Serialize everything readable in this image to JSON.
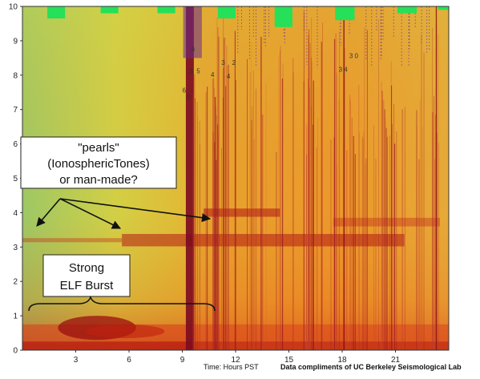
{
  "chart_data": {
    "type": "heatmap",
    "title": "",
    "xlabel": "Time: Hours PST",
    "ylabel": "",
    "xlim": [
      0,
      24
    ],
    "ylim": [
      0,
      10
    ],
    "x_ticks": [
      3,
      6,
      9,
      12,
      15,
      18,
      21
    ],
    "y_ticks": [
      0,
      1,
      2,
      3,
      4,
      5,
      6,
      7,
      8,
      9,
      10
    ],
    "grid": false,
    "colormap": [
      "#7ecf6a",
      "#d8d838",
      "#f0a020",
      "#e45a10",
      "#b01010"
    ],
    "features": {
      "pearls_band_frequency": 3.2,
      "upper_band_frequency": 4.0,
      "elf_burst_frequency_max": 1.0,
      "strong_vertical_line_time": 9.2
    },
    "annotations": [
      {
        "name": "pearls",
        "lines": [
          "\"pearls\"",
          "(IonosphericTones)",
          "or man-made?"
        ]
      },
      {
        "name": "elf-burst",
        "lines": [
          "Strong",
          "ELF Burst"
        ]
      }
    ],
    "credit": "Data compliments of UC Berkeley Seismological Lab",
    "small_annotations": [
      "3",
      "5",
      "3",
      "2",
      "4",
      "8",
      "4",
      "6",
      "3",
      "4",
      "3",
      "0",
      "6"
    ]
  },
  "colors": {
    "background_green": "#7ecf6a",
    "background_yellow": "#d8d838",
    "hot_red": "#b01010",
    "marker_green": "#26e05a",
    "arrow": "#111111"
  }
}
